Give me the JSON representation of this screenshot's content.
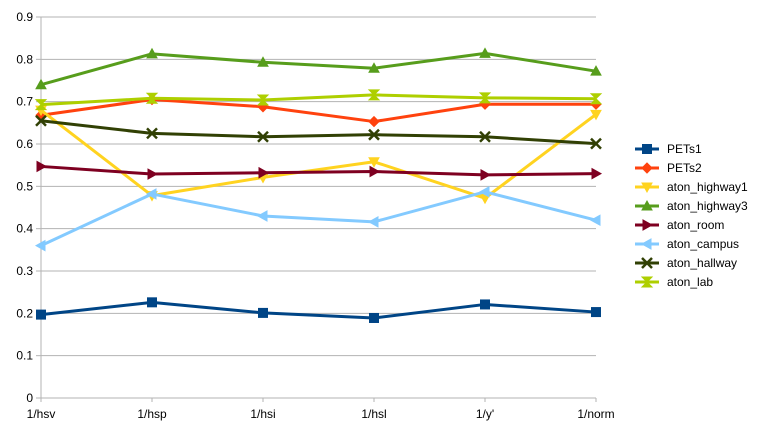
{
  "chart_data": {
    "type": "line",
    "categories": [
      "1/hsv",
      "1/hsp",
      "1/hsi",
      "1/hsl",
      "1/y'",
      "1/norm"
    ],
    "ylim": [
      0,
      0.9
    ],
    "yticks": [
      0,
      0.1,
      0.2,
      0.3,
      0.4,
      0.5,
      0.6,
      0.7,
      0.8,
      0.9
    ],
    "ytick_labels": [
      "0",
      "0.1",
      "0.2",
      "0.3",
      "0.4",
      "0.5",
      "0.6",
      "0.7",
      "0.8",
      "0.9"
    ],
    "grid": "horizontal",
    "legend_position": "right",
    "series": [
      {
        "name": "PETs1",
        "color": "#004586",
        "marker": "square",
        "values": [
          0.197,
          0.226,
          0.201,
          0.189,
          0.221,
          0.203
        ]
      },
      {
        "name": "PETs2",
        "color": "#ff420e",
        "marker": "diamond",
        "values": [
          0.668,
          0.705,
          0.688,
          0.653,
          0.694,
          0.694
        ]
      },
      {
        "name": "aton_highway1",
        "color": "#ffd320",
        "marker": "triangle-down",
        "values": [
          0.68,
          0.478,
          0.521,
          0.558,
          0.472,
          0.67
        ]
      },
      {
        "name": "aton_highway3",
        "color": "#579d1c",
        "marker": "triangle-up",
        "values": [
          0.74,
          0.813,
          0.793,
          0.779,
          0.814,
          0.772
        ]
      },
      {
        "name": "aton_room",
        "color": "#7e0021",
        "marker": "triangle-right",
        "values": [
          0.547,
          0.529,
          0.532,
          0.535,
          0.527,
          0.53
        ]
      },
      {
        "name": "aton_campus",
        "color": "#83caff",
        "marker": "triangle-left",
        "values": [
          0.36,
          0.482,
          0.43,
          0.416,
          0.487,
          0.42
        ]
      },
      {
        "name": "aton_hallway",
        "color": "#314004",
        "marker": "x",
        "values": [
          0.655,
          0.625,
          0.617,
          0.622,
          0.617,
          0.601
        ]
      },
      {
        "name": "aton_lab",
        "color": "#aecf00",
        "marker": "hourglass",
        "values": [
          0.693,
          0.708,
          0.704,
          0.716,
          0.709,
          0.707
        ]
      }
    ]
  }
}
